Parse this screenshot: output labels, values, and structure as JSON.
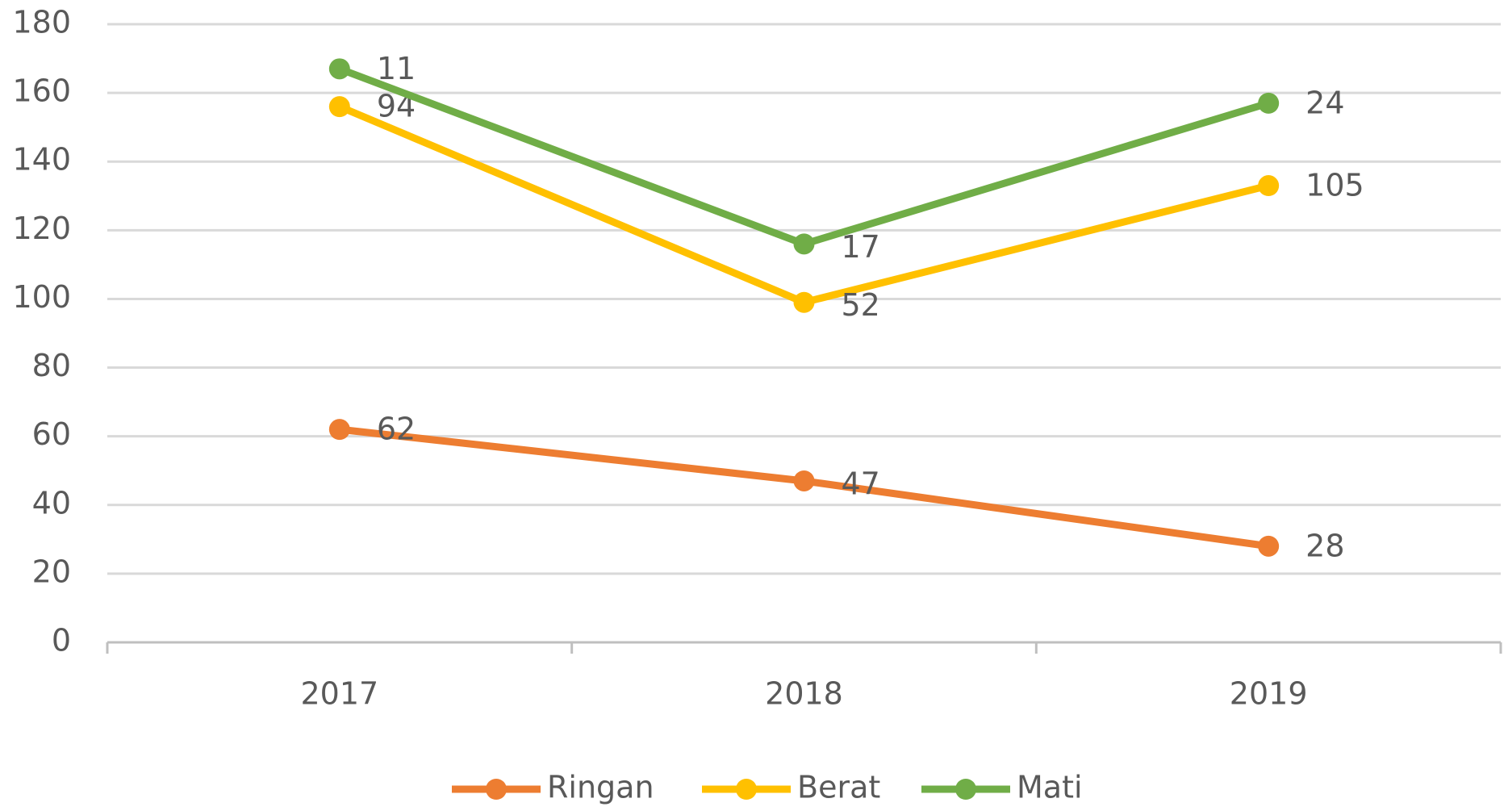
{
  "chart_data": {
    "type": "line",
    "stacked": true,
    "categories": [
      "2017",
      "2018",
      "2019"
    ],
    "series": [
      {
        "name": "Ringan",
        "color": "#ed7d31",
        "values": [
          62,
          47,
          28
        ]
      },
      {
        "name": "Berat",
        "color": "#ffc000",
        "values": [
          94,
          52,
          105
        ]
      },
      {
        "name": "Mati",
        "color": "#70ad47",
        "values": [
          11,
          17,
          24
        ]
      }
    ],
    "ylim": [
      0,
      180
    ],
    "yticks": [
      0,
      20,
      40,
      60,
      80,
      100,
      120,
      140,
      160,
      180
    ],
    "grid": true,
    "legend": "bottom"
  }
}
